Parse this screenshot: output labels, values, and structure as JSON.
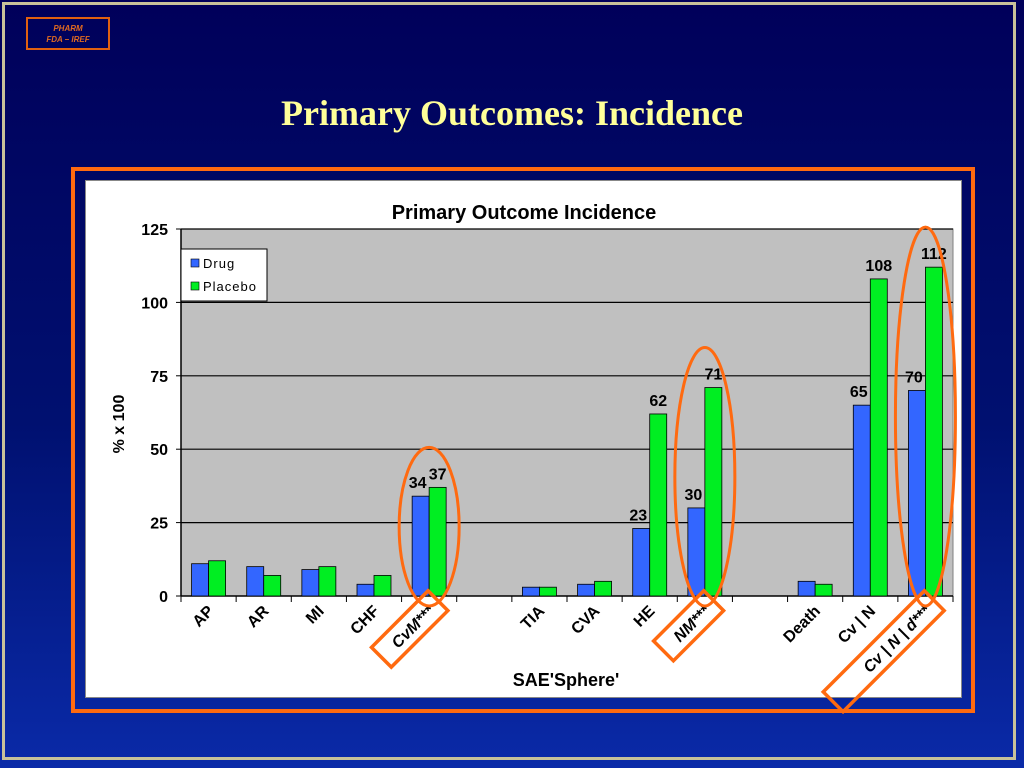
{
  "badge": {
    "line1": "PHARM",
    "line2": "FDA – IREF"
  },
  "slide_title": "Primary Outcomes: Incidence",
  "colors": {
    "drug": "#3366ff",
    "placebo": "#00ee22",
    "plot_bg": "#c0c0c0",
    "highlight": "#ff6a10"
  },
  "chart_data": {
    "type": "bar",
    "title": "Primary Outcome Incidence",
    "xlabel": "SAE'Sphere'",
    "ylabel": "% x 100",
    "ylim": [
      0,
      125
    ],
    "yticks": [
      0,
      25,
      50,
      75,
      100,
      125
    ],
    "grid": true,
    "legend_position": "top-left",
    "categories": [
      "AP",
      "AR",
      "MI",
      "CHF",
      "CvM***",
      "",
      "TIA",
      "CVA",
      "HE",
      "NM***",
      "",
      "Death",
      "Cv | N",
      "Cv | N | d***"
    ],
    "series": [
      {
        "name": "Drug",
        "values": [
          11,
          10,
          9,
          4,
          34,
          null,
          3,
          4,
          23,
          30,
          null,
          5,
          65,
          70
        ]
      },
      {
        "name": "Placebo",
        "values": [
          12,
          7,
          10,
          7,
          37,
          null,
          3,
          5,
          62,
          71,
          null,
          4,
          108,
          112
        ]
      }
    ],
    "data_labels": {
      "Drug": [
        null,
        null,
        null,
        null,
        "34",
        null,
        null,
        null,
        "23",
        "30",
        null,
        null,
        "65",
        "70"
      ],
      "Placebo": [
        null,
        null,
        null,
        null,
        "37",
        null,
        null,
        null,
        "62",
        "71",
        null,
        null,
        "108",
        "112"
      ]
    },
    "highlighted_categories": [
      "CvM***",
      "NM***",
      "Cv | N | d***"
    ]
  }
}
